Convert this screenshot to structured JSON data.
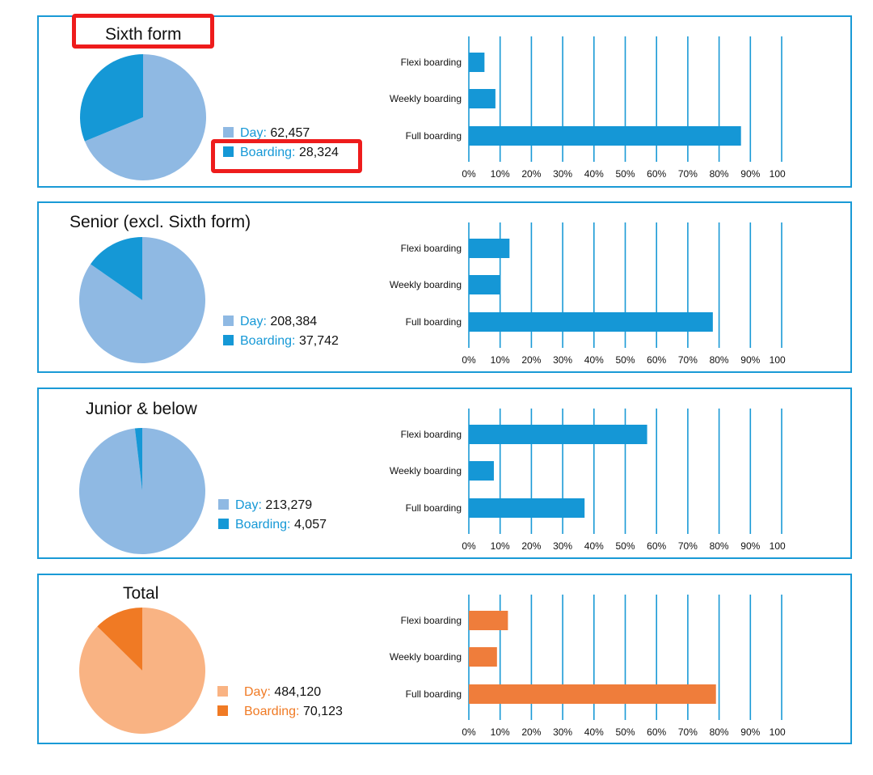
{
  "colors": {
    "blue_light": "#8fb9e3",
    "blue_dark": "#1598d6",
    "blue_bar": "#1597d6",
    "orange_light": "#f9b383",
    "orange_dark": "#f07a24",
    "orange_bar": "#ef7d3b",
    "highlight": "#ee1c1c",
    "border": "#1a9ad6"
  },
  "chart_data": [
    {
      "type": "pie",
      "title": "Sixth form",
      "slices": [
        {
          "label": "Day:",
          "value": 62457,
          "display": "62,457"
        },
        {
          "label": "Boarding:",
          "value": 28324,
          "display": "28,324"
        }
      ]
    },
    {
      "type": "bar",
      "orientation": "horizontal",
      "categories": [
        "Flexi boarding",
        "Weekly boarding",
        "Full boarding"
      ],
      "values": [
        5,
        8.5,
        87
      ],
      "xlim": [
        0,
        100
      ],
      "xticks": [
        "0%",
        "10%",
        "20%",
        "30%",
        "40%",
        "50%",
        "60%",
        "70%",
        "80%",
        "90%",
        "100%"
      ],
      "grid": true
    },
    {
      "type": "pie",
      "title": "Senior (excl. Sixth form)",
      "slices": [
        {
          "label": "Day:",
          "value": 208384,
          "display": "208,384"
        },
        {
          "label": "Boarding:",
          "value": 37742,
          "display": "37,742"
        }
      ]
    },
    {
      "type": "bar",
      "orientation": "horizontal",
      "categories": [
        "Flexi boarding",
        "Weekly boarding",
        "Full boarding"
      ],
      "values": [
        13,
        10,
        78
      ],
      "xlim": [
        0,
        100
      ],
      "xticks": [
        "0%",
        "10%",
        "20%",
        "30%",
        "40%",
        "50%",
        "60%",
        "70%",
        "80%",
        "90%",
        "100%"
      ],
      "grid": true
    },
    {
      "type": "pie",
      "title": "Junior & below",
      "slices": [
        {
          "label": "Day:",
          "value": 213279,
          "display": "213,279"
        },
        {
          "label": "Boarding:",
          "value": 4057,
          "display": "4,057"
        }
      ]
    },
    {
      "type": "bar",
      "orientation": "horizontal",
      "categories": [
        "Flexi boarding",
        "Weekly boarding",
        "Full boarding"
      ],
      "values": [
        57,
        8,
        37
      ],
      "xlim": [
        0,
        100
      ],
      "xticks": [
        "0%",
        "10%",
        "20%",
        "30%",
        "40%",
        "50%",
        "60%",
        "70%",
        "80%",
        "90%",
        "100%"
      ],
      "grid": true
    },
    {
      "type": "pie",
      "title": "Total",
      "slices": [
        {
          "label": "Day:",
          "value": 484120,
          "display": "484,120"
        },
        {
          "label": "Boarding:",
          "value": 70123,
          "display": "70,123"
        }
      ]
    },
    {
      "type": "bar",
      "orientation": "horizontal",
      "categories": [
        "Flexi boarding",
        "Weekly boarding",
        "Full boarding"
      ],
      "values": [
        12.5,
        9,
        79
      ],
      "xlim": [
        0,
        100
      ],
      "xticks": [
        "0%",
        "10%",
        "20%",
        "30%",
        "40%",
        "50%",
        "60%",
        "70%",
        "80%",
        "90%",
        "100%"
      ],
      "grid": true
    }
  ],
  "highlights": [
    "Sixth form title",
    "Sixth form boarding count"
  ]
}
